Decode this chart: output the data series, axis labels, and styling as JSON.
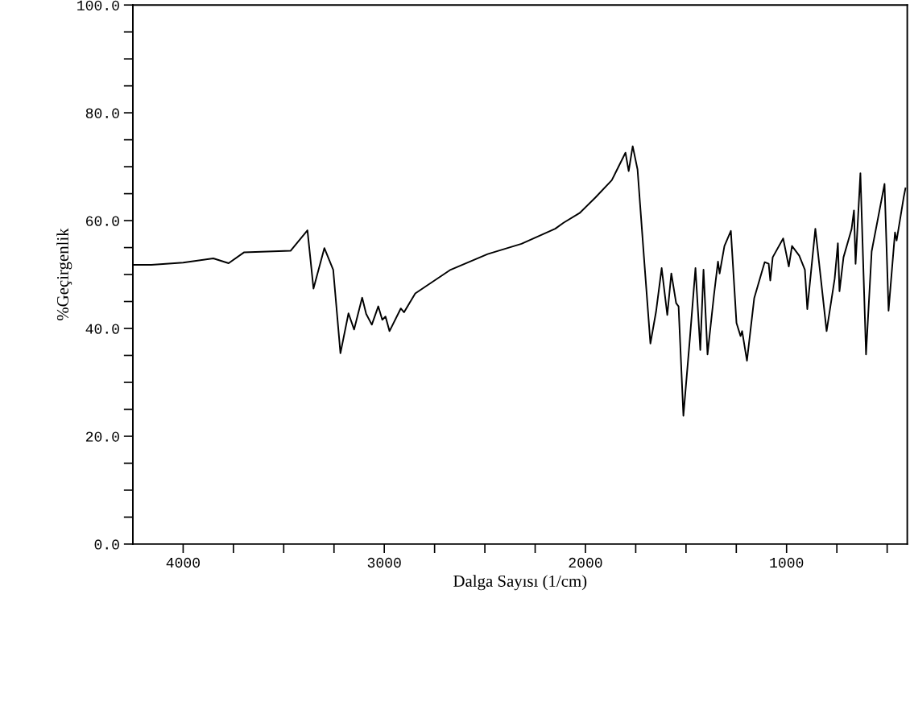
{
  "chart_data": {
    "type": "line",
    "xlabel": "Dalga Sayısı (1/cm)",
    "ylabel": "%Geçirgenlik",
    "x": [
      4250,
      4158,
      4000,
      3850,
      3774,
      3698,
      3466,
      3382,
      3352,
      3298,
      3254,
      3218,
      3178,
      3150,
      3110,
      3090,
      3062,
      3030,
      3010,
      2994,
      2974,
      2918,
      2902,
      2846,
      2670,
      2486,
      2318,
      2150,
      2109,
      2029,
      1950,
      1869,
      1801,
      1785,
      1765,
      1741,
      1709,
      1677,
      1649,
      1621,
      1593,
      1573,
      1549,
      1537,
      1513,
      1481,
      1453,
      1429,
      1413,
      1393,
      1361,
      1341,
      1333,
      1309,
      1277,
      1249,
      1229,
      1221,
      1197,
      1161,
      1109,
      1089,
      1081,
      1069,
      1017,
      989,
      973,
      937,
      909,
      897,
      857,
      801,
      761,
      745,
      737,
      717,
      677,
      665,
      657,
      633,
      605,
      577,
      513,
      493,
      461,
      453,
      417,
      409
    ],
    "series": [
      {
        "color": "#000000",
        "values": [
          51.8,
          51.8,
          52.2,
          53.0,
          52.1,
          54.1,
          54.4,
          58.2,
          47.4,
          54.9,
          50.9,
          35.4,
          42.8,
          39.8,
          45.7,
          42.7,
          40.7,
          44.1,
          41.6,
          42.2,
          39.5,
          43.7,
          43.0,
          46.5,
          50.9,
          53.8,
          55.7,
          58.5,
          59.6,
          61.4,
          64.3,
          67.5,
          72.6,
          69.2,
          73.8,
          69.5,
          53.2,
          37.2,
          43.1,
          51.2,
          42.5,
          50.2,
          44.7,
          44.1,
          23.8,
          38.0,
          51.2,
          36.0,
          50.9,
          35.2,
          46.2,
          52.4,
          50.2,
          55.3,
          58.1,
          41.0,
          38.6,
          39.5,
          34.0,
          45.6,
          52.3,
          52.0,
          48.9,
          53.2,
          56.7,
          51.5,
          55.3,
          53.5,
          50.9,
          43.6,
          58.5,
          39.5,
          49.2,
          55.8,
          46.9,
          53.2,
          58.4,
          61.9,
          52.0,
          68.8,
          35.2,
          54.3,
          66.8,
          43.3,
          57.8,
          56.3,
          64.5,
          66.0
        ]
      }
    ],
    "xlim": [
      4250,
      400
    ],
    "xticks": [
      {
        "value": 4000,
        "label": "4000"
      },
      {
        "value": 3750,
        "label": null
      },
      {
        "value": 3500,
        "label": null
      },
      {
        "value": 3250,
        "label": null
      },
      {
        "value": 3000,
        "label": "3000"
      },
      {
        "value": 2750,
        "label": null
      },
      {
        "value": 2500,
        "label": null
      },
      {
        "value": 2250,
        "label": null
      },
      {
        "value": 2000,
        "label": "2000"
      },
      {
        "value": 1750,
        "label": null
      },
      {
        "value": 1500,
        "label": null
      },
      {
        "value": 1250,
        "label": null
      },
      {
        "value": 1000,
        "label": "1000"
      },
      {
        "value": 750,
        "label": null
      },
      {
        "value": 500,
        "label": null
      }
    ],
    "ylim": [
      0,
      100
    ],
    "yticks": [
      {
        "value": 0,
        "label": "0.0"
      },
      {
        "value": 5,
        "label": null
      },
      {
        "value": 10,
        "label": null
      },
      {
        "value": 15,
        "label": null
      },
      {
        "value": 20,
        "label": "20.0"
      },
      {
        "value": 25,
        "label": null
      },
      {
        "value": 30,
        "label": null
      },
      {
        "value": 35,
        "label": null
      },
      {
        "value": 40,
        "label": "40.0"
      },
      {
        "value": 45,
        "label": null
      },
      {
        "value": 50,
        "label": null
      },
      {
        "value": 55,
        "label": null
      },
      {
        "value": 60,
        "label": "60.0"
      },
      {
        "value": 65,
        "label": null
      },
      {
        "value": 70,
        "label": null
      },
      {
        "value": 75,
        "label": null
      },
      {
        "value": 80,
        "label": "80.0"
      },
      {
        "value": 85,
        "label": null
      },
      {
        "value": 90,
        "label": null
      },
      {
        "value": 95,
        "label": null
      },
      {
        "value": 100,
        "label": "100.0"
      }
    ],
    "grid": false,
    "legend": false,
    "marker": "none",
    "line_style": "solid"
  }
}
